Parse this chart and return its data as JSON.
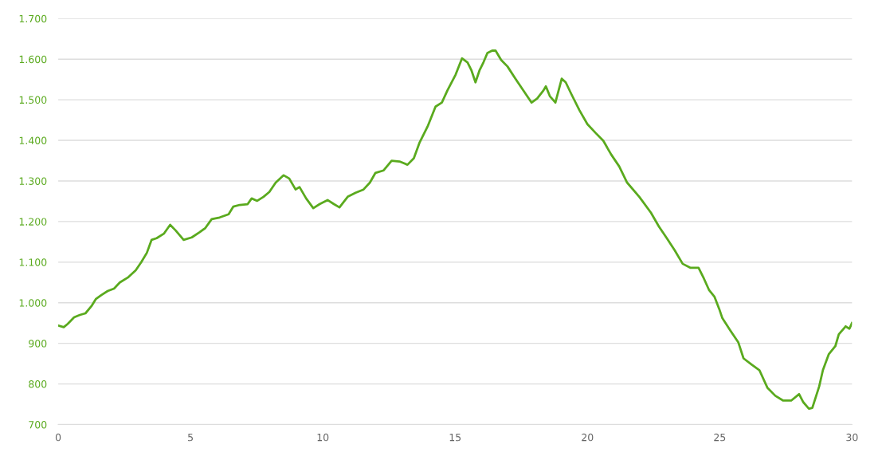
{
  "chart_data": {
    "type": "line",
    "grid": "y",
    "marker": "none",
    "line_style": "solid",
    "xlim": [
      0,
      30
    ],
    "xticks": [
      0,
      5,
      10,
      15,
      20,
      25,
      30
    ],
    "ylim": [
      700,
      1700
    ],
    "yticks": [
      {
        "value": 700,
        "label": "700"
      },
      {
        "value": 800,
        "label": "800"
      },
      {
        "value": 900,
        "label": "900"
      },
      {
        "value": 1000,
        "label": "1.000"
      },
      {
        "value": 1100,
        "label": "1.100"
      },
      {
        "value": 1200,
        "label": "1.200"
      },
      {
        "value": 1300,
        "label": "1.300"
      },
      {
        "value": 1400,
        "label": "1.400"
      },
      {
        "value": 1500,
        "label": "1.500"
      },
      {
        "value": 1600,
        "label": "1.600"
      },
      {
        "value": 1700,
        "label": "1.700"
      }
    ],
    "x": [
      0,
      0.21,
      0.36,
      0.6,
      0.82,
      1.03,
      1.27,
      1.42,
      1.63,
      1.87,
      2.11,
      2.33,
      2.63,
      2.93,
      3.14,
      3.35,
      3.53,
      3.72,
      3.99,
      4.23,
      4.44,
      4.74,
      5.05,
      5.35,
      5.56,
      5.8,
      6.1,
      6.44,
      6.62,
      6.86,
      7.16,
      7.31,
      7.52,
      7.76,
      7.98,
      8.22,
      8.52,
      8.73,
      8.97,
      9.12,
      9.37,
      9.64,
      9.88,
      10.18,
      10.42,
      10.63,
      10.94,
      11.24,
      11.54,
      11.78,
      11.99,
      12.3,
      12.6,
      12.9,
      13.2,
      13.44,
      13.66,
      13.96,
      14.26,
      14.5,
      14.71,
      15.02,
      15.26,
      15.47,
      15.62,
      15.77,
      15.92,
      16.07,
      16.22,
      16.4,
      16.53,
      16.74,
      16.98,
      17.28,
      17.58,
      17.89,
      18.1,
      18.34,
      18.43,
      18.58,
      18.79,
      19.03,
      19.18,
      19.4,
      19.7,
      20.0,
      20.3,
      20.6,
      20.9,
      21.2,
      21.5,
      21.96,
      22.4,
      22.7,
      23.0,
      23.3,
      23.6,
      23.9,
      24.2,
      24.4,
      24.6,
      24.8,
      24.98,
      25.1,
      25.4,
      25.7,
      25.9,
      26.2,
      26.5,
      26.8,
      27.1,
      27.4,
      27.7,
      28.0,
      28.16,
      28.37,
      28.5,
      28.76,
      28.9,
      29.12,
      29.37,
      29.5,
      29.76,
      29.9,
      30.0
    ],
    "series": [
      {
        "color": "#5aaa1e",
        "values": [
          944,
          940,
          948,
          964,
          970,
          974,
          993,
          1009,
          1019,
          1029,
          1035,
          1050,
          1062,
          1080,
          1100,
          1123,
          1155,
          1159,
          1170,
          1192,
          1178,
          1155,
          1161,
          1174,
          1184,
          1206,
          1210,
          1218,
          1237,
          1241,
          1243,
          1257,
          1251,
          1261,
          1273,
          1296,
          1314,
          1306,
          1279,
          1285,
          1257,
          1233,
          1243,
          1253,
          1243,
          1235,
          1261,
          1271,
          1279,
          1296,
          1320,
          1326,
          1350,
          1348,
          1340,
          1356,
          1395,
          1434,
          1483,
          1493,
          1523,
          1562,
          1602,
          1592,
          1572,
          1543,
          1572,
          1592,
          1615,
          1621,
          1621,
          1598,
          1582,
          1552,
          1523,
          1493,
          1503,
          1523,
          1533,
          1509,
          1493,
          1552,
          1543,
          1513,
          1474,
          1440,
          1419,
          1399,
          1365,
          1336,
          1296,
          1261,
          1222,
          1188,
          1159,
          1129,
          1096,
          1086,
          1086,
          1060,
          1031,
          1015,
          985,
          962,
          932,
          903,
          863,
          848,
          834,
          791,
          771,
          759,
          759,
          775,
          755,
          739,
          741,
          794,
          834,
          873,
          893,
          922,
          942,
          936,
          950
        ]
      }
    ]
  }
}
